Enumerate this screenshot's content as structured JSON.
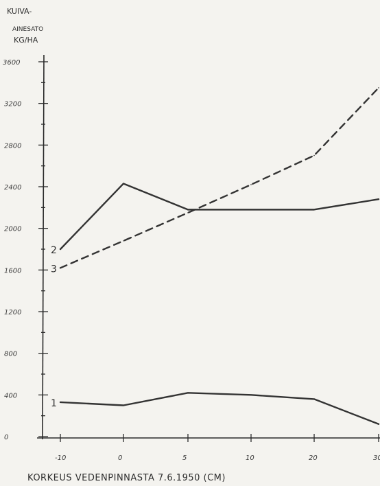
{
  "chart_data": {
    "type": "line",
    "title": "",
    "ylabel_lines": [
      "KUIVA-",
      "AINESATO",
      "KG/HA"
    ],
    "xlabel": "KORKEUS VEDENPINNASTA 7.6.1950 (CM)",
    "x_categories": [
      "-10",
      "0",
      "5",
      "10",
      "20",
      "30"
    ],
    "y_ticks": [
      0,
      400,
      800,
      1200,
      1600,
      2000,
      2400,
      2800,
      3200,
      3600
    ],
    "y_tick_labels": [
      "0",
      "400",
      "800",
      "1200",
      "1600",
      "2000",
      "2400",
      "2800",
      "3200",
      "3600"
    ],
    "ylim": [
      0,
      3600
    ],
    "grid": false,
    "series": [
      {
        "name": "1",
        "style": "solid",
        "color": "#333333",
        "values": [
          330,
          300,
          420,
          400,
          360,
          120
        ]
      },
      {
        "name": "2",
        "style": "solid",
        "color": "#333333",
        "values": [
          1800,
          2430,
          2180,
          2180,
          2180,
          2280
        ]
      },
      {
        "name": "3",
        "style": "dashed",
        "color": "#333333",
        "values": [
          1620,
          1880,
          2150,
          2420,
          2700,
          3350
        ]
      }
    ]
  }
}
